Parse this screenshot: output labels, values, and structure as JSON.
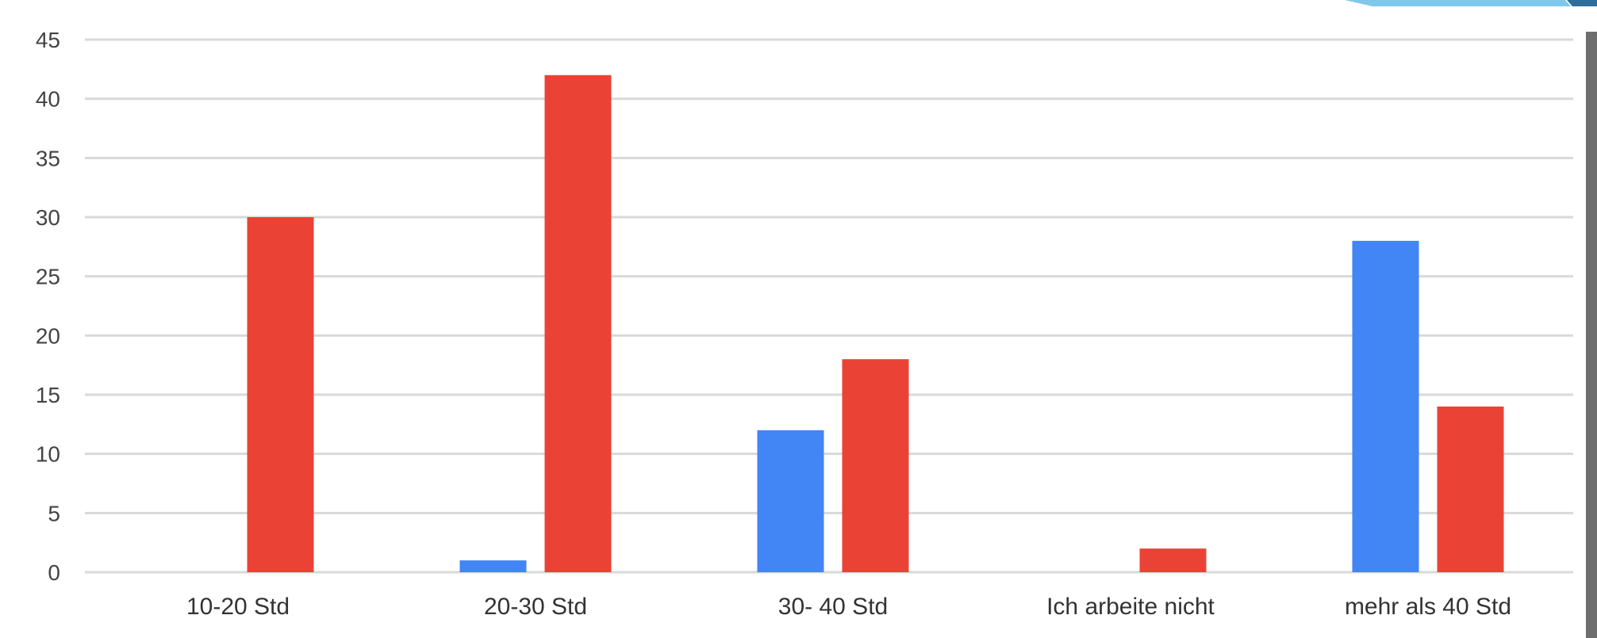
{
  "chart_data": {
    "type": "bar",
    "title": "",
    "xlabel": "",
    "ylabel": "",
    "categories": [
      "10-20 Std",
      "20-30 Std",
      "30- 40 Std",
      "Ich arbeite nicht",
      "mehr als 40 Std"
    ],
    "series": [
      {
        "color": "#4285f4",
        "values": [
          0,
          1,
          12,
          0,
          28
        ]
      },
      {
        "color": "#ea4335",
        "values": [
          30,
          42,
          18,
          2,
          14
        ]
      }
    ],
    "ylim": [
      0,
      45
    ],
    "yticks": [
      0,
      5,
      10,
      15,
      20,
      25,
      30,
      35,
      40,
      45
    ],
    "grid": true,
    "legend": "none"
  }
}
